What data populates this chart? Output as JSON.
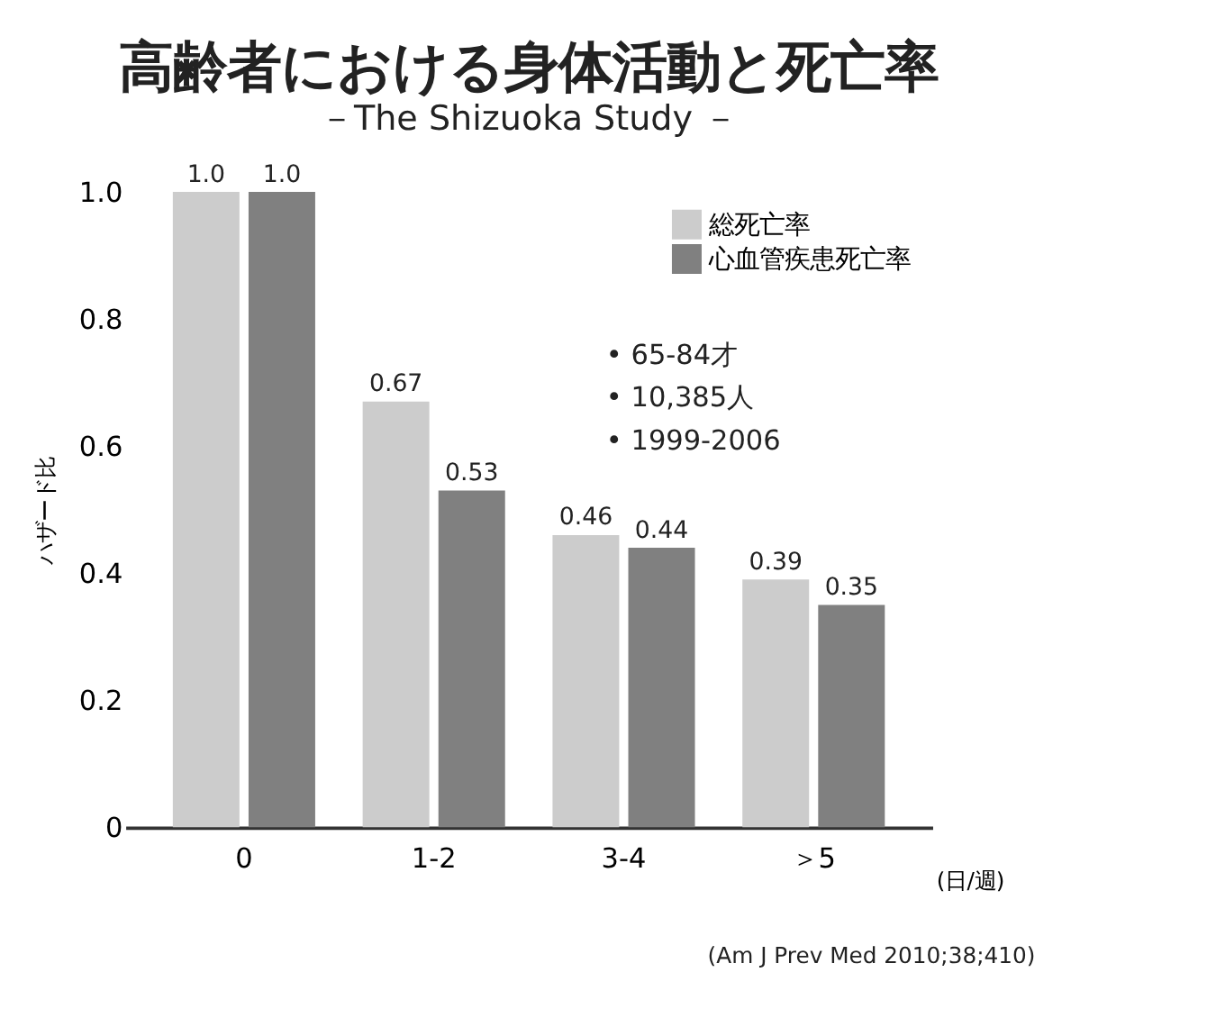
{
  "chart_data": {
    "type": "bar",
    "title": "高齢者における身体活動と死亡率",
    "subtitle": "－The Shizuoka Study －",
    "ylabel": "ハザード比",
    "xlabel": "(日/週)",
    "categories": [
      "0",
      "1-2",
      "3-4",
      "＞5"
    ],
    "series": [
      {
        "name": "総死亡率",
        "color": "#cccccc",
        "values": [
          1.0,
          0.67,
          0.46,
          0.39
        ],
        "value_labels": [
          "1.0",
          "0.67",
          "0.46",
          "0.39"
        ]
      },
      {
        "name": "心血管疾患死亡率",
        "color": "#808080",
        "values": [
          1.0,
          0.53,
          0.44,
          0.35
        ],
        "value_labels": [
          "1.0",
          "0.53",
          "0.44",
          "0.35"
        ]
      }
    ],
    "ylim": [
      0,
      1
    ],
    "yticks": [
      0,
      0.2,
      0.4,
      0.6,
      0.8,
      {
        "value": 1,
        "label": "1.0"
      }
    ],
    "grid": false,
    "legend": "top right",
    "annotations": [
      "• 65-84才",
      "• 10,385人",
      "• 1999-2006",
      "(Am J Prev Med 2010;38;410)"
    ]
  }
}
